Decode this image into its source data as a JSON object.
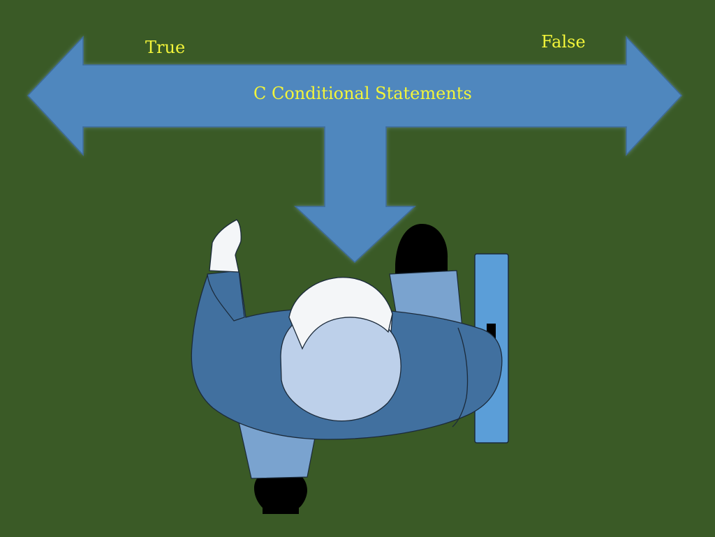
{
  "diagram": {
    "title": "C Conditional Statements",
    "left_label": "True",
    "right_label": "False"
  },
  "colors": {
    "background": "#3A5A26",
    "arrow_fill": "#4F87BE",
    "arrow_stroke": "#3D6A98",
    "label_text": "#F3F53A",
    "jacket": "#41709F",
    "sleeve_light": "#7AA3CF",
    "head": "#BDD0EA",
    "shirt_white": "#F4F6F8",
    "shoe": "#000000",
    "door": "#5B9ED8",
    "outline": "#1B2A3A"
  },
  "icons": {
    "arrow": "three-way-arrow",
    "person": "person-top-view-icon",
    "door": "door-icon"
  }
}
